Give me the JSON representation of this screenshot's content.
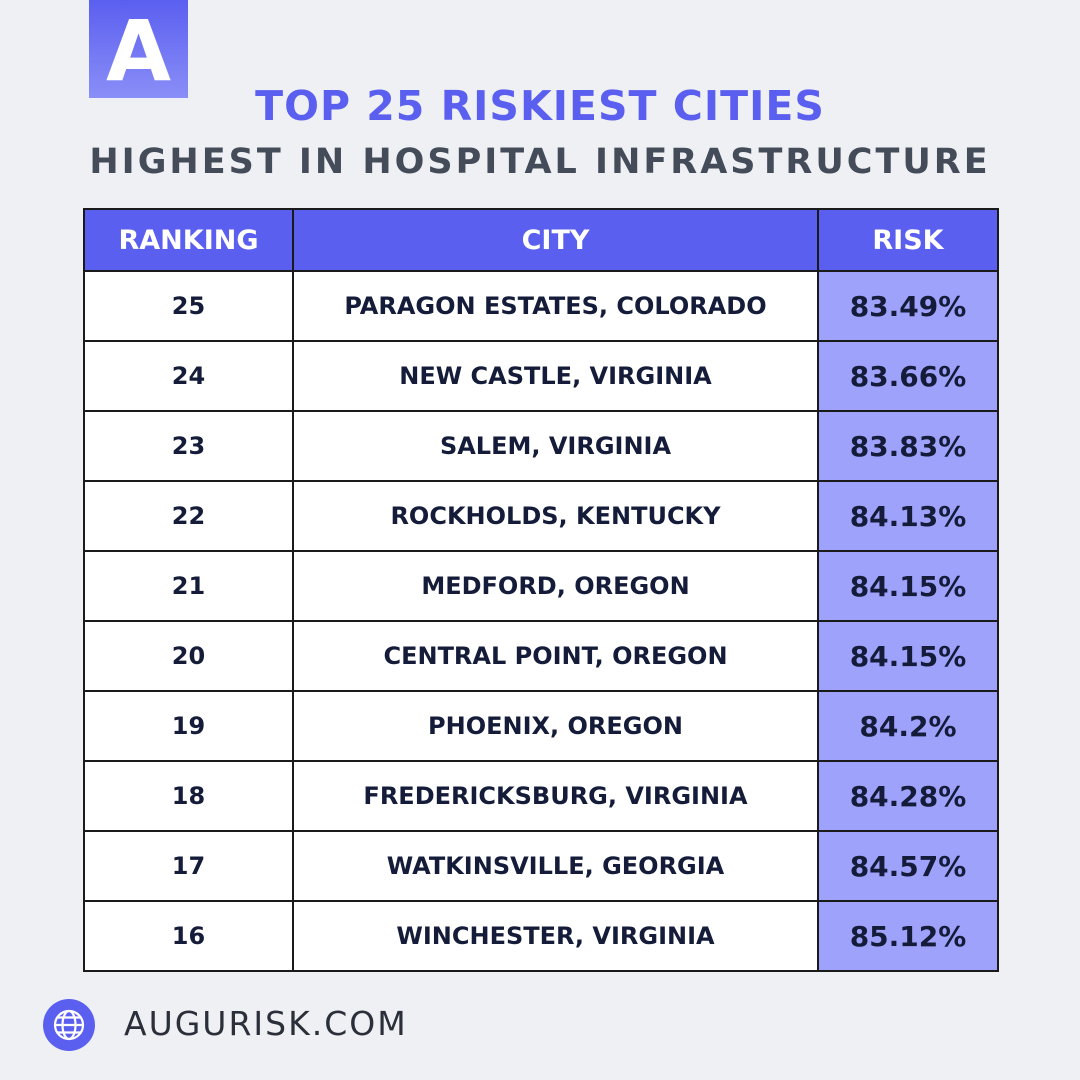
{
  "brand": {
    "logo_letter": "A",
    "accent_color": "#5b5ff0",
    "risk_color": "#9ea2fa"
  },
  "header": {
    "title": "TOP 25 RISKIEST CITIES",
    "subtitle": "HIGHEST IN HOSPITAL INFRASTRUCTURE"
  },
  "table": {
    "columns": [
      "RANKING",
      "CITY",
      "RISK"
    ],
    "rows": [
      {
        "rank": "25",
        "city": "PARAGON ESTATES, COLORADO",
        "risk": "83.49%"
      },
      {
        "rank": "24",
        "city": "NEW CASTLE, VIRGINIA",
        "risk": "83.66%"
      },
      {
        "rank": "23",
        "city": "SALEM, VIRGINIA",
        "risk": "83.83%"
      },
      {
        "rank": "22",
        "city": "ROCKHOLDS, KENTUCKY",
        "risk": "84.13%"
      },
      {
        "rank": "21",
        "city": "MEDFORD, OREGON",
        "risk": "84.15%"
      },
      {
        "rank": "20",
        "city": "CENTRAL POINT, OREGON",
        "risk": "84.15%"
      },
      {
        "rank": "19",
        "city": "PHOENIX, OREGON",
        "risk": "84.2%"
      },
      {
        "rank": "18",
        "city": "FREDERICKSBURG, VIRGINIA",
        "risk": "84.28%"
      },
      {
        "rank": "17",
        "city": "WATKINSVILLE, GEORGIA",
        "risk": "84.57%"
      },
      {
        "rank": "16",
        "city": "WINCHESTER, VIRGINIA",
        "risk": "85.12%"
      }
    ]
  },
  "footer": {
    "icon": "globe-icon",
    "website": "AUGURISK.COM"
  }
}
